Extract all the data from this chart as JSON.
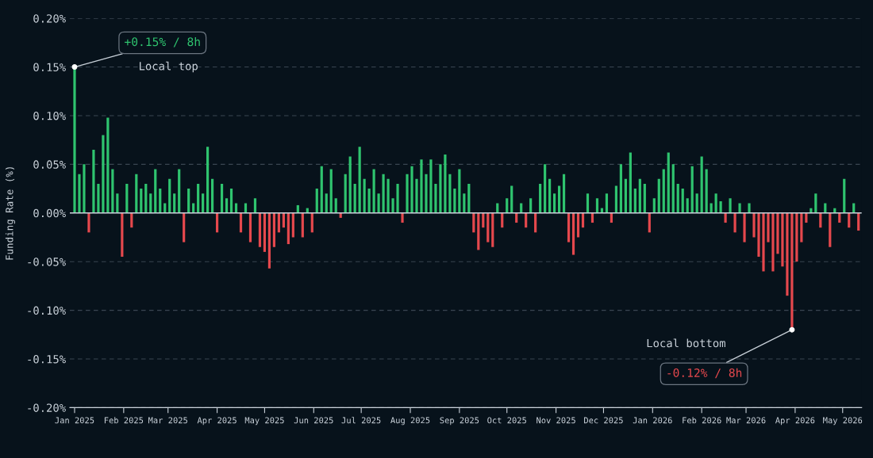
{
  "chart_data": {
    "type": "bar",
    "ylabel": "Funding Rate (%)",
    "series": [
      {
        "color": "#2fc46f",
        "x": [
          "2025-01-01",
          "2025-01-04",
          "2025-01-07",
          "2025-01-13",
          "2025-01-16",
          "2025-01-19",
          "2025-01-22",
          "2025-01-25",
          "2025-01-28",
          "2025-02-03",
          "2025-02-09",
          "2025-02-12",
          "2025-02-15",
          "2025-02-18",
          "2025-02-21",
          "2025-02-24",
          "2025-02-27",
          "2025-03-02",
          "2025-03-05",
          "2025-03-08",
          "2025-03-14",
          "2025-03-17",
          "2025-03-20",
          "2025-03-23",
          "2025-03-26",
          "2025-03-29",
          "2025-04-04",
          "2025-04-07",
          "2025-04-10",
          "2025-04-13",
          "2025-04-19",
          "2025-04-25",
          "2025-05-22",
          "2025-05-28",
          "2025-06-03",
          "2025-06-06",
          "2025-06-09",
          "2025-06-12",
          "2025-06-15",
          "2025-06-21",
          "2025-06-24",
          "2025-06-27",
          "2025-06-30",
          "2025-07-03",
          "2025-07-06",
          "2025-07-09",
          "2025-07-12",
          "2025-07-15",
          "2025-07-18",
          "2025-07-21",
          "2025-07-24",
          "2025-07-30",
          "2025-08-02",
          "2025-08-05",
          "2025-08-08",
          "2025-08-11",
          "2025-08-14",
          "2025-08-17",
          "2025-08-20",
          "2025-08-23",
          "2025-08-26",
          "2025-08-29",
          "2025-09-01",
          "2025-09-04",
          "2025-09-07",
          "2025-09-25",
          "2025-10-01",
          "2025-10-04",
          "2025-10-10",
          "2025-10-16",
          "2025-10-22",
          "2025-10-25",
          "2025-10-28",
          "2025-10-31",
          "2025-11-03",
          "2025-11-06",
          "2025-11-21",
          "2025-11-27",
          "2025-11-30",
          "2025-12-03",
          "2025-12-09",
          "2025-12-12",
          "2025-12-15",
          "2025-12-18",
          "2025-12-21",
          "2025-12-24",
          "2025-12-27",
          "2026-01-02",
          "2026-01-05",
          "2026-01-08",
          "2026-01-11",
          "2026-01-14",
          "2026-01-17",
          "2026-01-20",
          "2026-01-23",
          "2026-01-26",
          "2026-01-29",
          "2026-02-01",
          "2026-02-04",
          "2026-02-07",
          "2026-02-10",
          "2026-02-13",
          "2026-02-19",
          "2026-02-25",
          "2026-03-03",
          "2026-04-11",
          "2026-04-14",
          "2026-04-20",
          "2026-04-26",
          "2026-05-02",
          "2026-05-08"
        ],
        "values": [
          0.15,
          0.04,
          0.05,
          0.065,
          0.03,
          0.08,
          0.098,
          0.045,
          0.02,
          0.03,
          0.04,
          0.025,
          0.03,
          0.02,
          0.045,
          0.025,
          0.01,
          0.035,
          0.02,
          0.045,
          0.025,
          0.01,
          0.03,
          0.02,
          0.068,
          0.035,
          0.03,
          0.015,
          0.025,
          0.01,
          0.01,
          0.015,
          0.008,
          0.005,
          0.025,
          0.048,
          0.02,
          0.045,
          0.015,
          0.04,
          0.058,
          0.03,
          0.068,
          0.035,
          0.025,
          0.045,
          0.02,
          0.04,
          0.035,
          0.015,
          0.03,
          0.04,
          0.048,
          0.035,
          0.055,
          0.04,
          0.055,
          0.03,
          0.05,
          0.06,
          0.04,
          0.025,
          0.045,
          0.02,
          0.03,
          0.01,
          0.015,
          0.028,
          0.01,
          0.015,
          0.03,
          0.05,
          0.035,
          0.02,
          0.028,
          0.04,
          0.02,
          0.015,
          0.005,
          0.02,
          0.028,
          0.05,
          0.035,
          0.062,
          0.025,
          0.035,
          0.03,
          0.015,
          0.035,
          0.045,
          0.062,
          0.05,
          0.03,
          0.025,
          0.015,
          0.048,
          0.02,
          0.058,
          0.045,
          0.01,
          0.02,
          0.012,
          0.015,
          0.01,
          0.01,
          0.005,
          0.02,
          0.01,
          0.005,
          0.035,
          0.01
        ]
      },
      {
        "color": "#e5484d",
        "x": [
          "2025-01-10",
          "2025-01-31",
          "2025-02-06",
          "2025-03-11",
          "2025-04-01",
          "2025-04-16",
          "2025-04-22",
          "2025-04-28",
          "2025-05-01",
          "2025-05-04",
          "2025-05-07",
          "2025-05-10",
          "2025-05-13",
          "2025-05-16",
          "2025-05-19",
          "2025-05-25",
          "2025-05-31",
          "2025-06-18",
          "2025-07-27",
          "2025-09-10",
          "2025-09-13",
          "2025-09-16",
          "2025-09-19",
          "2025-09-22",
          "2025-09-28",
          "2025-10-07",
          "2025-10-13",
          "2025-10-19",
          "2025-11-09",
          "2025-11-12",
          "2025-11-15",
          "2025-11-18",
          "2025-11-24",
          "2025-12-06",
          "2025-12-30",
          "2026-02-16",
          "2026-02-22",
          "2026-02-28",
          "2026-03-06",
          "2026-03-09",
          "2026-03-12",
          "2026-03-15",
          "2026-03-18",
          "2026-03-21",
          "2026-03-24",
          "2026-03-27",
          "2026-03-30",
          "2026-04-02",
          "2026-04-05",
          "2026-04-08",
          "2026-04-17",
          "2026-04-23",
          "2026-04-29",
          "2026-05-05",
          "2026-05-11"
        ],
        "values": [
          -0.02,
          -0.045,
          -0.015,
          -0.03,
          -0.02,
          -0.02,
          -0.03,
          -0.035,
          -0.04,
          -0.057,
          -0.035,
          -0.02,
          -0.015,
          -0.032,
          -0.025,
          -0.025,
          -0.02,
          -0.005,
          -0.01,
          -0.02,
          -0.038,
          -0.015,
          -0.03,
          -0.035,
          -0.015,
          -0.01,
          -0.015,
          -0.02,
          -0.03,
          -0.043,
          -0.025,
          -0.015,
          -0.01,
          -0.01,
          -0.02,
          -0.01,
          -0.02,
          -0.03,
          -0.025,
          -0.045,
          -0.06,
          -0.03,
          -0.06,
          -0.042,
          -0.055,
          -0.085,
          -0.12,
          -0.05,
          -0.03,
          -0.01,
          -0.015,
          -0.035,
          -0.01,
          -0.015,
          -0.018
        ]
      }
    ],
    "xlim": [
      "2024-12-29",
      "2026-05-13"
    ],
    "xticks": [
      {
        "value": "2025-01-01",
        "label": "Jan 2025"
      },
      {
        "value": "2025-02-01",
        "label": "Feb 2025"
      },
      {
        "value": "2025-03-01",
        "label": "Mar 2025"
      },
      {
        "value": "2025-04-01",
        "label": "Apr 2025"
      },
      {
        "value": "2025-05-01",
        "label": "May 2025"
      },
      {
        "value": "2025-06-01",
        "label": "Jun 2025"
      },
      {
        "value": "2025-07-01",
        "label": "Jul 2025"
      },
      {
        "value": "2025-08-01",
        "label": "Aug 2025"
      },
      {
        "value": "2025-09-01",
        "label": "Sep 2025"
      },
      {
        "value": "2025-10-01",
        "label": "Oct 2025"
      },
      {
        "value": "2025-11-01",
        "label": "Nov 2025"
      },
      {
        "value": "2025-12-01",
        "label": "Dec 2025"
      },
      {
        "value": "2026-01-01",
        "label": "Jan 2026"
      },
      {
        "value": "2026-02-01",
        "label": "Feb 2026"
      },
      {
        "value": "2026-03-01",
        "label": "Mar 2026"
      },
      {
        "value": "2026-04-01",
        "label": "Apr 2026"
      },
      {
        "value": "2026-05-01",
        "label": "May 2026"
      }
    ],
    "ylim": [
      -0.2,
      0.2
    ],
    "yticks": [
      {
        "value": -0.2,
        "label": "-0.20%"
      },
      {
        "value": -0.15,
        "label": "-0.15%"
      },
      {
        "value": -0.1,
        "label": "-0.10%"
      },
      {
        "value": -0.05,
        "label": "-0.05%"
      },
      {
        "value": 0,
        "label": "0.00%"
      },
      {
        "value": 0.05,
        "label": "0.05%"
      },
      {
        "value": 0.1,
        "label": "0.10%"
      },
      {
        "value": 0.15,
        "label": "0.15%"
      },
      {
        "value": 0.2,
        "label": "0.20%"
      }
    ],
    "grid": "y",
    "annotations": [
      {
        "text": "+0.15% / 8h",
        "x": "2025-01-01",
        "y": 0.15
      },
      "Local top",
      {
        "text": "-0.12% / 8h",
        "x": "2026-03-30",
        "y": -0.12
      },
      "Local bottom"
    ]
  }
}
